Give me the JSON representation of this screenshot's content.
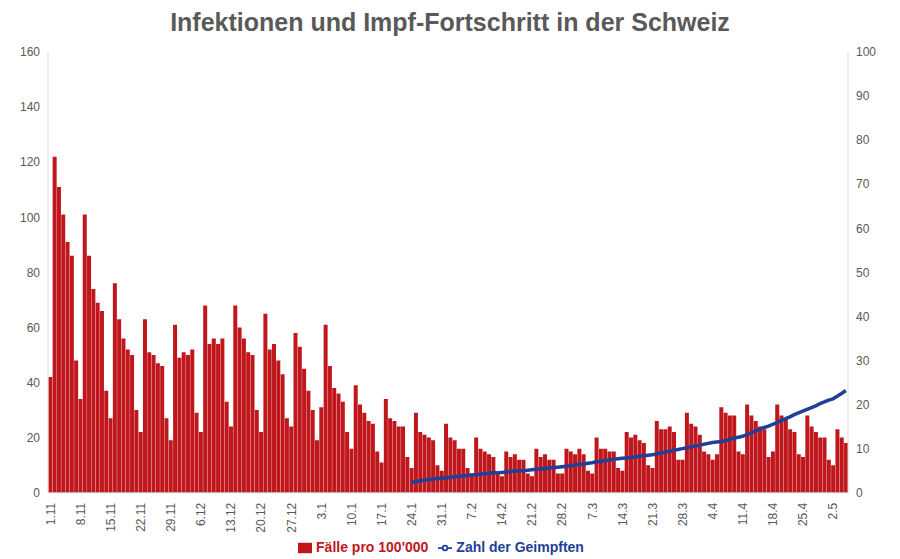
{
  "chart_data": {
    "type": "bar",
    "title": "Infektionen und Impf-Fortschritt in der Schweiz",
    "categories": [
      "1.11",
      null,
      null,
      null,
      null,
      null,
      null,
      "8.11",
      null,
      null,
      null,
      null,
      null,
      null,
      "15.11",
      null,
      null,
      null,
      null,
      null,
      null,
      "22.11",
      null,
      null,
      null,
      null,
      null,
      null,
      "29.11",
      null,
      null,
      null,
      null,
      null,
      null,
      "6.12",
      null,
      null,
      null,
      null,
      null,
      null,
      "13.12",
      null,
      null,
      null,
      null,
      null,
      null,
      "20.12",
      null,
      null,
      null,
      null,
      null,
      null,
      "27.12",
      null,
      null,
      null,
      null,
      null,
      null,
      "3.1",
      null,
      null,
      null,
      null,
      null,
      null,
      "10.1",
      null,
      null,
      null,
      null,
      null,
      null,
      "17.1",
      null,
      null,
      null,
      null,
      null,
      null,
      "24.1",
      null,
      null,
      null,
      null,
      null,
      null,
      "31.1",
      null,
      null,
      null,
      null,
      null,
      null,
      "7.2",
      null,
      null,
      null,
      null,
      null,
      null,
      "14.2",
      null,
      null,
      null,
      null,
      null,
      null,
      "21.2",
      null,
      null,
      null,
      null,
      null,
      null,
      "28.2",
      null,
      null,
      null,
      null,
      null,
      null,
      "7.3",
      null,
      null,
      null,
      null,
      null,
      null,
      "14.3",
      null,
      null,
      null,
      null,
      null,
      null,
      "21.3",
      null,
      null,
      null,
      null,
      null,
      null,
      "28.3",
      null,
      null,
      null,
      null,
      null,
      null,
      "4.4",
      null,
      null,
      null,
      null,
      null,
      null,
      "11.4",
      null,
      null,
      null,
      null,
      null,
      null,
      "18.4",
      null,
      null,
      null,
      null,
      null,
      null,
      "25.4",
      null,
      null,
      null,
      null,
      null,
      null,
      "2.5",
      null,
      null,
      null
    ],
    "series": [
      {
        "name": "Fälle pro 100'000",
        "type": "bar",
        "color": "#c0171c",
        "values": [
          42,
          122,
          111,
          101,
          91,
          86,
          48,
          34,
          101,
          86,
          74,
          69,
          66,
          37,
          27,
          76,
          63,
          56,
          52,
          50,
          30,
          22,
          63,
          51,
          50,
          47,
          46,
          27,
          19,
          61,
          49,
          51,
          50,
          52,
          29,
          22,
          68,
          54,
          56,
          54,
          56,
          33,
          24,
          68,
          60,
          56,
          51,
          50,
          30,
          22,
          65,
          52,
          54,
          48,
          43,
          27,
          24,
          58,
          53,
          45,
          37,
          30,
          19,
          31,
          61,
          46,
          38,
          36,
          33,
          22,
          16,
          39,
          32,
          29,
          26,
          25,
          15,
          11,
          34,
          27,
          26,
          24,
          24,
          13,
          9,
          29,
          22,
          21,
          20,
          19,
          10,
          8,
          25,
          20,
          19,
          16,
          16,
          9,
          7,
          20,
          16,
          15,
          14,
          13,
          7,
          6,
          15,
          13,
          14,
          12,
          12,
          7,
          6,
          16,
          13,
          14,
          12,
          12,
          7,
          7,
          16,
          15,
          14,
          16,
          14,
          8,
          7,
          20,
          16,
          16,
          15,
          15,
          9,
          8,
          22,
          20,
          21,
          19,
          18,
          10,
          9,
          26,
          23,
          23,
          24,
          22,
          12,
          12,
          29,
          25,
          24,
          21,
          15,
          14,
          12,
          14,
          31,
          29,
          28,
          28,
          15,
          14,
          32,
          28,
          26,
          24,
          23,
          13,
          15,
          32,
          28,
          27,
          23,
          22,
          14,
          13,
          28,
          24,
          22,
          20,
          20,
          12,
          10,
          23,
          20,
          18
        ]
      },
      {
        "name": "Zahl der Geimpften",
        "type": "line",
        "axis": "y2",
        "color": "#1f3f99",
        "values": [
          null,
          null,
          null,
          null,
          null,
          null,
          null,
          null,
          null,
          null,
          null,
          null,
          null,
          null,
          null,
          null,
          null,
          null,
          null,
          null,
          null,
          null,
          null,
          null,
          null,
          null,
          null,
          null,
          null,
          null,
          null,
          null,
          null,
          null,
          null,
          null,
          null,
          null,
          null,
          null,
          null,
          null,
          null,
          null,
          null,
          null,
          null,
          null,
          null,
          null,
          null,
          null,
          null,
          null,
          null,
          null,
          null,
          null,
          null,
          null,
          null,
          null,
          null,
          null,
          null,
          null,
          null,
          null,
          null,
          null,
          null,
          null,
          null,
          null,
          null,
          null,
          null,
          null,
          null,
          null,
          null,
          null,
          null,
          null,
          2.3,
          2.5,
          2.7,
          2.8,
          3.0,
          3.1,
          3.2,
          3.3,
          3.4,
          3.5,
          3.6,
          3.7,
          3.8,
          3.9,
          4.0,
          4.1,
          4.2,
          4.3,
          4.4,
          4.5,
          4.5,
          4.6,
          4.7,
          4.8,
          4.9,
          5.0,
          5.0,
          5.1,
          5.2,
          5.3,
          5.4,
          5.5,
          5.6,
          5.7,
          5.8,
          5.9,
          6.0,
          6.1,
          6.3,
          6.4,
          6.5,
          6.7,
          6.8,
          7.0,
          7.1,
          7.3,
          7.4,
          7.6,
          7.7,
          7.8,
          7.9,
          8.0,
          8.1,
          8.3,
          8.4,
          8.5,
          8.6,
          8.8,
          9.0,
          9.2,
          9.4,
          9.6,
          9.8,
          10.0,
          10.2,
          10.4,
          10.6,
          10.8,
          11.0,
          11.2,
          11.4,
          11.5,
          11.6,
          11.8,
          12.1,
          12.4,
          12.6,
          12.8,
          13.2,
          13.6,
          14.0,
          14.4,
          14.8,
          15.1,
          15.5,
          15.9,
          16.4,
          16.8,
          17.2,
          17.7,
          18.1,
          18.5,
          18.9,
          19.3,
          19.7,
          20.2,
          20.6,
          21.0,
          21.3,
          21.9,
          22.5,
          23.2
        ]
      }
    ],
    "ylim": [
      0,
      160
    ],
    "yticks": [
      0,
      20,
      40,
      60,
      80,
      100,
      120,
      140,
      160
    ],
    "y2lim": [
      0,
      100
    ],
    "y2ticks": [
      0,
      10,
      20,
      30,
      40,
      50,
      60,
      70,
      80,
      90,
      100
    ],
    "grid": false,
    "legend": "bottom"
  }
}
